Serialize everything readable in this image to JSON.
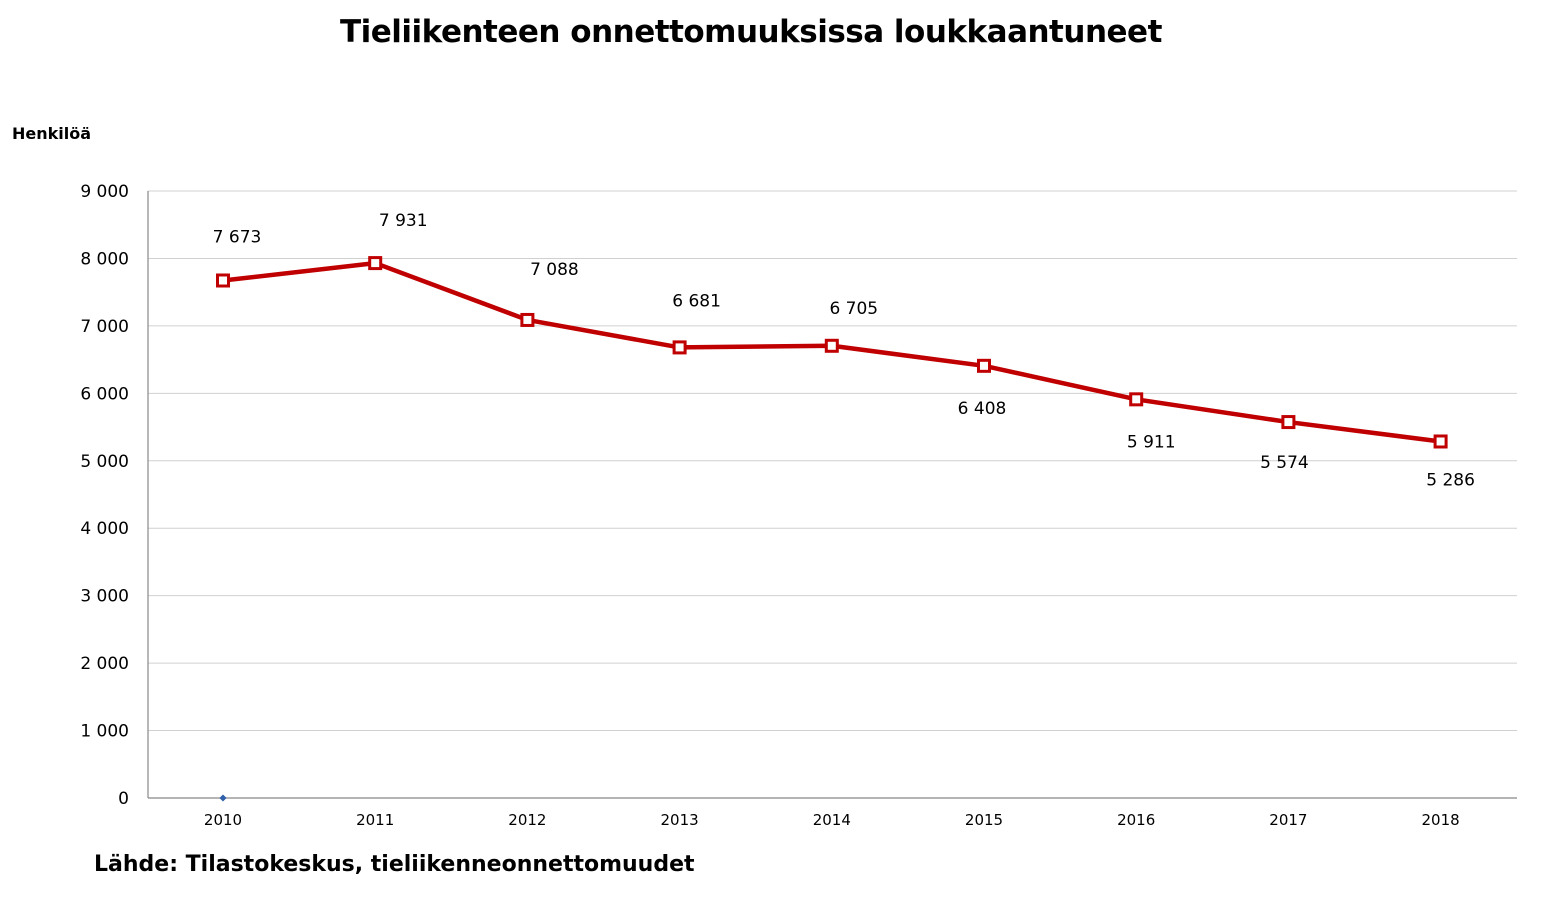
{
  "chart_data": {
    "type": "line",
    "title": "Tieliikenteen onnettomuuksissa loukkaantuneet",
    "ylabel": "Henkilöä",
    "xlabel": "",
    "categories": [
      "2010",
      "2011",
      "2012",
      "2013",
      "2014",
      "2015",
      "2016",
      "2017",
      "2018"
    ],
    "series": [
      {
        "values": [
          7673,
          7931,
          7088,
          6681,
          6705,
          6408,
          5911,
          5574,
          5286
        ],
        "data_labels": [
          "7 673",
          "7 931",
          "7 088",
          "6 681",
          "6 705",
          "6 408",
          "5 911",
          "5 574",
          "5 286"
        ],
        "color": "#c00000"
      }
    ],
    "ylim": [
      0,
      9000
    ],
    "yticks": [
      0,
      1000,
      2000,
      3000,
      4000,
      5000,
      6000,
      7000,
      8000,
      9000
    ],
    "ytick_labels": [
      "0",
      "1 000",
      "2 000",
      "3 000",
      "4 000",
      "5 000",
      "6 000",
      "7 000",
      "8 000",
      "9 000"
    ],
    "grid": true,
    "legend": "none"
  },
  "source": "Lähde: Tilastokeskus, tieliikenneonnettomuudet"
}
